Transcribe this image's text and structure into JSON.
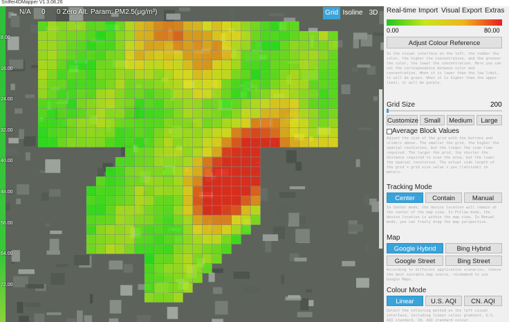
{
  "window": {
    "title": "Sniffer4DMapper V1.3.08.26"
  },
  "toolbar": {
    "location": "N/A",
    "count": "0",
    "zero_alt": "0 Zero Alt.",
    "param": "Param: PM2.5(μg/m³)",
    "views": [
      "Grid",
      "Isoline",
      "3D"
    ]
  },
  "scale": [
    "8.00",
    "16.00",
    "24.00",
    "32.00",
    "40.00",
    "48.00",
    "56.00",
    "64.00",
    "72.00"
  ],
  "panel": {
    "tabs": [
      "Real-time",
      "Import",
      "Visual",
      "Export",
      "Extras"
    ],
    "colour_min": "0.00",
    "colour_max": "80.00",
    "adjust_button": "Adjust Colour Reference",
    "colour_help": "In the visual interface on the left, the redder the color, the higher the concentration, and the greener the color, the lower the concentration. Here you can set the correspondence between color and concentration. When it is lower than the low limit, it will be green. When it is higher than the upper limit, it will be purple.",
    "grid_size_label": "Grid Size",
    "grid_size_value": "200",
    "grid_buttons": [
      "Customize",
      "Small",
      "Medium",
      "Large"
    ],
    "average_label": "Average Block Values",
    "grid_help": "Adjust the size of the grid with the buttons and sliders above. The smaller the grid, the higher the spatial resolution, but the longer the scan time required. The larger the grid, the shorter the distance required to scan the area, but the lower the spatial resolution. The actual side length of the grid = grid size value x you (latitude) in meters.",
    "tracking_label": "Tracking Mode",
    "tracking_buttons": [
      "Center",
      "Contain",
      "Manual"
    ],
    "tracking_help": "In Center mode, the device location will remain at the center of the map view. In Follow mode, the device location is within the map view. In Manual mode, you can freely drag the map perspective.",
    "map_label": "Map",
    "map_buttons": [
      "Google Hybrid",
      "Bing Hybrid",
      "Google Street",
      "Bing Street"
    ],
    "map_help": "According to different application scenarios, choose the most suitable map source, recommend to use Google Maps.",
    "colour_mode_label": "Colour Mode",
    "colour_mode_buttons": [
      "Linear",
      "U.S. AQI",
      "CN. AQI"
    ],
    "colour_mode_help": "Select the colouring method on the left visual interface, including linear colour gradient, U.S. AQI standard, CN. AQI standard colour."
  }
}
